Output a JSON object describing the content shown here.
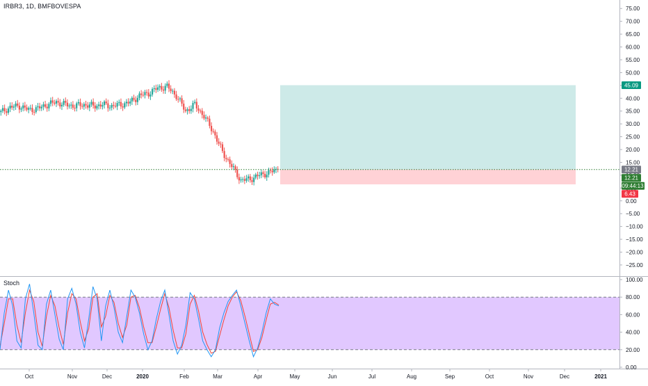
{
  "title": "IRBR3, 1D, BMFBOVESPA",
  "colors": {
    "up": "#26a69a",
    "down": "#ef5350",
    "target_zone": "#b2dfdb",
    "stop_zone": "#ffcdd2",
    "price_line": "#2e7d32",
    "stoch_k": "#2196f3",
    "stoch_d": "#f44336",
    "stoch_band": "#e1c8ff"
  },
  "price_axis": {
    "ticks": [
      "75.00",
      "70.00",
      "65.00",
      "60.00",
      "55.00",
      "50.00",
      "45.00",
      "40.00",
      "35.00",
      "30.00",
      "25.00",
      "20.00",
      "15.00",
      "10.00",
      "5.00",
      "0.00",
      "−5.00",
      "−10.00",
      "−15.00",
      "−20.00",
      "−25.00"
    ],
    "labels": {
      "target": "45.09",
      "current": "12.21",
      "last": "12.21",
      "countdown": "09:44:13",
      "stop": "6.43"
    }
  },
  "time_axis": {
    "labels": [
      "Oct",
      "Nov",
      "Dec",
      "2020",
      "Feb",
      "Mar",
      "Apr",
      "May",
      "Jun",
      "Jul",
      "Aug",
      "Sep",
      "Oct",
      "Nov",
      "Dec",
      "2021"
    ]
  },
  "position": {
    "entry": 12.21,
    "target": 45.09,
    "stop": 6.43
  },
  "stoch": {
    "name": "Stoch",
    "upper_band": 80,
    "lower_band": 20,
    "ticks": [
      "100.00",
      "80.00",
      "60.00",
      "40.00",
      "20.00",
      "0.00"
    ]
  },
  "chart_data": {
    "type": "line",
    "title": "IRBR3, 1D, BMFBOVESPA",
    "note_series": "approximate daily closes read from the candlestick chart",
    "price_range": [
      -28,
      78
    ],
    "series": [
      {
        "x": [
          "2019-09-20",
          "2019-09-27",
          "2019-10-04",
          "2019-10-11",
          "2019-10-18",
          "2019-10-25",
          "2019-11-01",
          "2019-11-08",
          "2019-11-15",
          "2019-11-22",
          "2019-11-29",
          "2019-12-06",
          "2019-12-13",
          "2019-12-20",
          "2019-12-27",
          "2020-01-03",
          "2020-01-10",
          "2020-01-17",
          "2020-01-24",
          "2020-01-31",
          "2020-02-07",
          "2020-02-14",
          "2020-02-21",
          "2020-02-28",
          "2020-03-06",
          "2020-03-13",
          "2020-03-20",
          "2020-03-27",
          "2020-04-03",
          "2020-04-10",
          "2020-04-17"
        ],
        "values": [
          34.5,
          36.5,
          37.0,
          35.5,
          36.0,
          37.5,
          38.5,
          37.5,
          37.0,
          37.5,
          37.0,
          37.5,
          37.0,
          37.5,
          38.5,
          41.0,
          42.0,
          44.0,
          44.5,
          41.0,
          35.0,
          37.5,
          33.0,
          27.0,
          19.0,
          13.5,
          8.0,
          8.5,
          10.0,
          11.0,
          12.21
        ]
      }
    ],
    "stoch_k": [
      20,
      62,
      88,
      70,
      30,
      22,
      78,
      95,
      62,
      25,
      20,
      72,
      88,
      60,
      32,
      20,
      78,
      90,
      72,
      40,
      22,
      55,
      92,
      78,
      30,
      70,
      88,
      68,
      40,
      28,
      58,
      88,
      80,
      62,
      38,
      20,
      30,
      55,
      75,
      88,
      60,
      30,
      15,
      25,
      48,
      85,
      78,
      55,
      30,
      20,
      12,
      20,
      45,
      62,
      75,
      82,
      88,
      70,
      50,
      30,
      12,
      22,
      40,
      62,
      78,
      72,
      70
    ],
    "stoch_d": [
      24,
      50,
      78,
      78,
      48,
      28,
      62,
      88,
      75,
      40,
      24,
      58,
      82,
      70,
      45,
      26,
      62,
      84,
      78,
      52,
      30,
      44,
      80,
      84,
      46,
      58,
      82,
      74,
      50,
      34,
      48,
      80,
      82,
      68,
      46,
      28,
      28,
      46,
      66,
      84,
      68,
      42,
      22,
      22,
      38,
      72,
      82,
      64,
      40,
      26,
      16,
      18,
      36,
      54,
      70,
      80,
      86,
      76,
      58,
      38,
      18,
      20,
      34,
      54,
      72,
      74,
      71
    ],
    "stoch_upper": 80,
    "stoch_lower": 20
  }
}
